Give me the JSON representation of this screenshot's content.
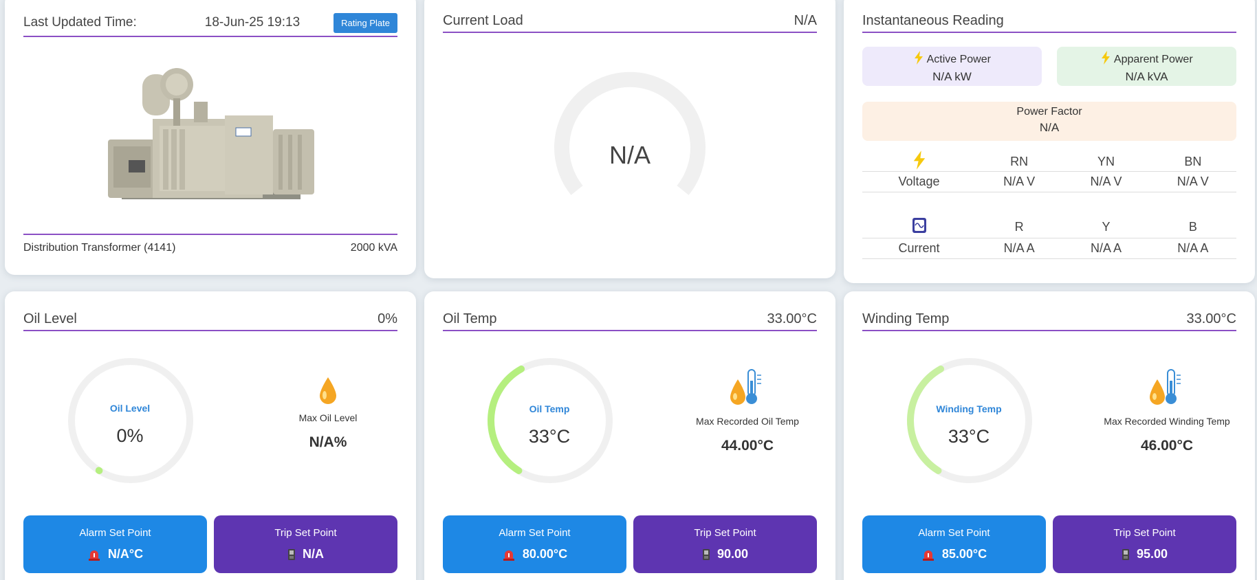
{
  "info": {
    "last_updated_label": "Last Updated Time:",
    "last_updated_value": "18-Jun-25 19:13",
    "rating_plate_button": "Rating Plate",
    "device_name": "Distribution Transformer (4141)",
    "capacity": "2000 kVA"
  },
  "current_load": {
    "title": "Current Load",
    "header_value": "N/A",
    "gauge_value": "N/A"
  },
  "instantaneous": {
    "title": "Instantaneous Reading",
    "active_power_label": "Active Power",
    "active_power_value": "N/A kW",
    "apparent_power_label": "Apparent Power",
    "apparent_power_value": "N/A kVA",
    "power_factor_label": "Power Factor",
    "power_factor_value": "N/A",
    "voltage": {
      "headers": [
        "RN",
        "YN",
        "BN"
      ],
      "label": "Voltage",
      "values": [
        "N/A V",
        "N/A V",
        "N/A V"
      ]
    },
    "current": {
      "headers": [
        "R",
        "Y",
        "B"
      ],
      "label": "Current",
      "values": [
        "N/A A",
        "N/A A",
        "N/A A"
      ]
    }
  },
  "oil_level": {
    "title": "Oil Level",
    "header_value": "0%",
    "circle_label": "Oil Level",
    "circle_value": "0%",
    "fraction": 0,
    "max_label": "Max Oil Level",
    "max_value": "N/A%",
    "alarm_title": "Alarm Set Point",
    "alarm_value": "N/A°C",
    "trip_title": "Trip Set Point",
    "trip_value": "N/A"
  },
  "oil_temp": {
    "title": "Oil Temp",
    "header_value": "33.00°C",
    "circle_label": "Oil Temp",
    "circle_value": "33°C",
    "fraction": 0.33,
    "max_label": "Max Recorded Oil Temp",
    "max_value": "44.00°C",
    "alarm_title": "Alarm Set Point",
    "alarm_value": "80.00°C",
    "trip_title": "Trip Set Point",
    "trip_value": "90.00"
  },
  "winding_temp": {
    "title": "Winding Temp",
    "header_value": "33.00°C",
    "circle_label": "Winding Temp",
    "circle_value": "33°C",
    "fraction": 0.33,
    "max_label": "Max Recorded Winding Temp",
    "max_value": "46.00°C",
    "alarm_title": "Alarm Set Point",
    "alarm_value": "85.00°C",
    "trip_title": "Trip Set Point",
    "trip_value": "95.00"
  },
  "colors": {
    "accent": "#8b4fc4",
    "alarm": "#1e88e5",
    "trip": "#5e35b1",
    "arc": "#b5ef7f"
  },
  "icons": [
    "lightning-icon",
    "ac-current-icon",
    "oil-drop-icon",
    "thermometer-icon",
    "alarm-icon",
    "trip-icon"
  ]
}
